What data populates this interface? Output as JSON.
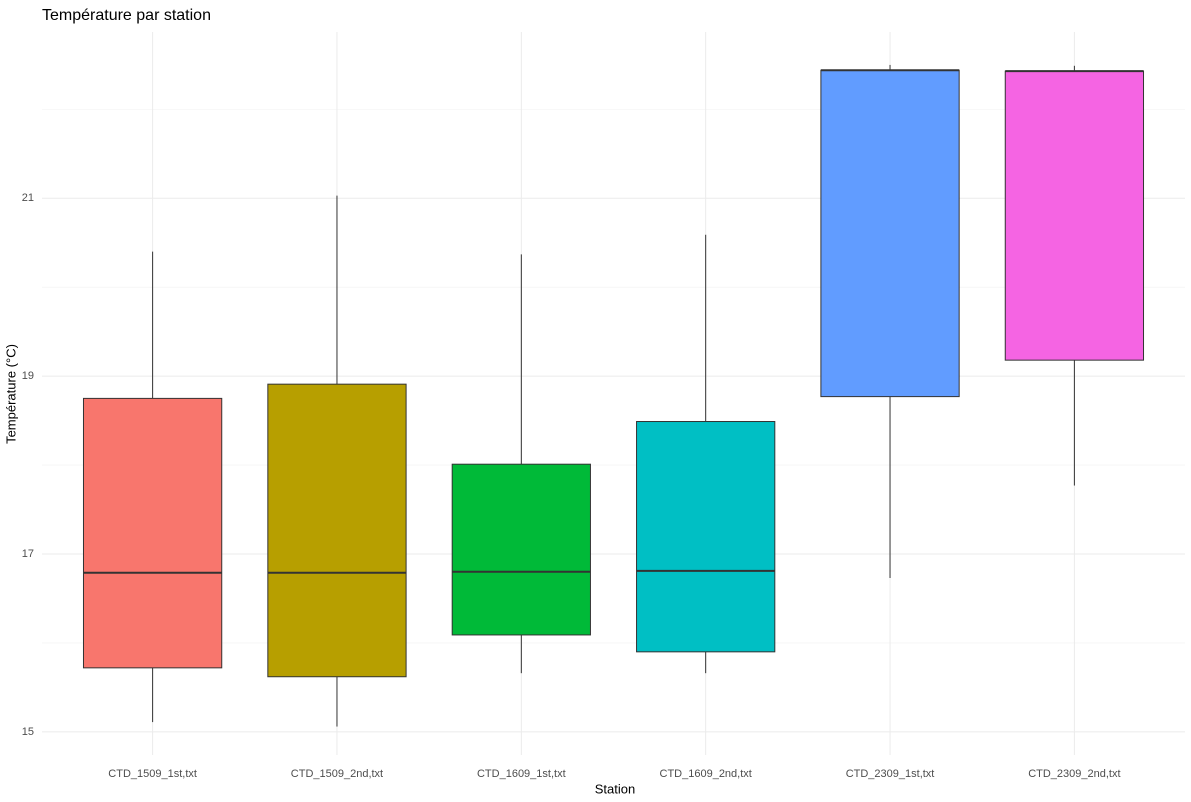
{
  "chart_data": {
    "type": "box",
    "title": "Température par station",
    "xlabel": "Station",
    "ylabel": "Température (°C)",
    "categories": [
      "CTD_1509_1st,txt",
      "CTD_1509_2nd,txt",
      "CTD_1609_1st,txt",
      "CTD_1609_2nd,txt",
      "CTD_2309_1st,txt",
      "CTD_2309_2nd,txt"
    ],
    "boxes": [
      {
        "min": 15.11,
        "q1": 15.72,
        "median": 16.79,
        "q3": 18.75,
        "max": 20.4,
        "color": "#F8766D"
      },
      {
        "min": 15.06,
        "q1": 15.62,
        "median": 16.79,
        "q3": 18.91,
        "max": 21.03,
        "color": "#B79F00"
      },
      {
        "min": 15.66,
        "q1": 16.09,
        "median": 16.8,
        "q3": 18.01,
        "max": 20.37,
        "color": "#00BA38"
      },
      {
        "min": 15.66,
        "q1": 15.9,
        "median": 16.81,
        "q3": 18.49,
        "max": 20.59,
        "color": "#00BFC4"
      },
      {
        "min": 16.73,
        "q1": 18.77,
        "median": 22.44,
        "q3": 22.44,
        "max": 22.5,
        "color": "#619CFF"
      },
      {
        "min": 17.77,
        "q1": 19.18,
        "median": 22.43,
        "q3": 22.43,
        "max": 22.49,
        "color": "#F564E3"
      }
    ],
    "ylim": [
      14.74,
      22.87
    ],
    "yticks": [
      15,
      17,
      19,
      21
    ],
    "minor_yticks": [
      16,
      18,
      20,
      22
    ],
    "grid": true
  }
}
